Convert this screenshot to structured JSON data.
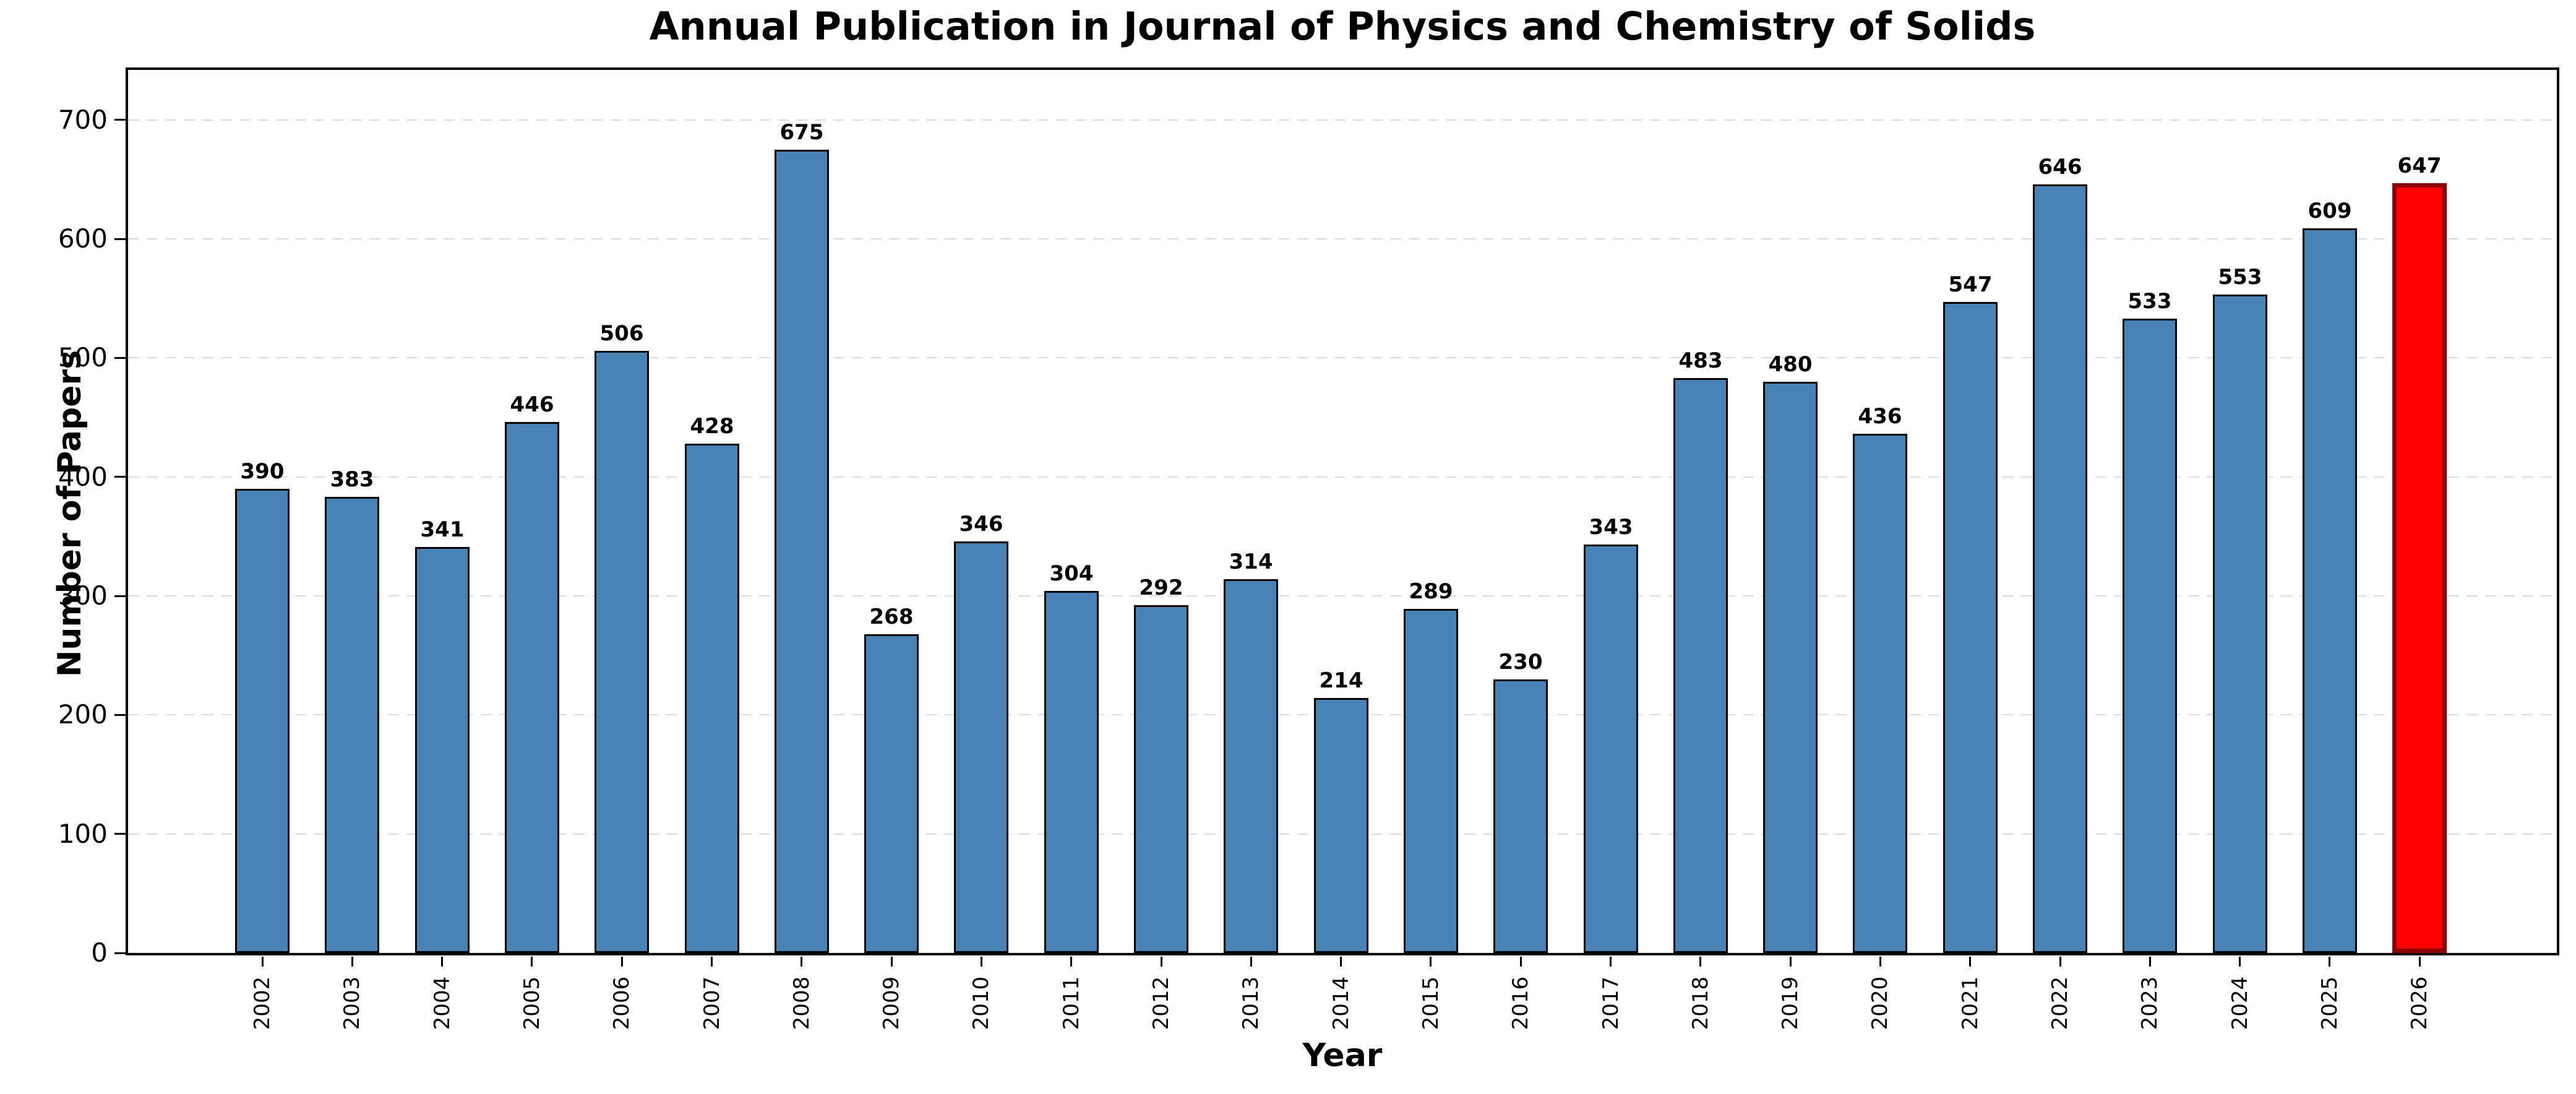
{
  "chart_data": {
    "type": "bar",
    "title": "Annual Publication in Journal of Physics and Chemistry of Solids",
    "xlabel": "Year",
    "ylabel": "Number of Papers",
    "categories": [
      "2002",
      "2003",
      "2004",
      "2005",
      "2006",
      "2007",
      "2008",
      "2009",
      "2010",
      "2011",
      "2012",
      "2013",
      "2014",
      "2015",
      "2016",
      "2017",
      "2018",
      "2019",
      "2020",
      "2021",
      "2022",
      "2023",
      "2024",
      "2025",
      "2026"
    ],
    "values": [
      390,
      383,
      341,
      446,
      506,
      428,
      675,
      268,
      346,
      304,
      292,
      314,
      214,
      289,
      230,
      343,
      483,
      480,
      436,
      547,
      646,
      533,
      553,
      609,
      647
    ],
    "ylim": [
      0,
      742
    ],
    "yticks": [
      0,
      100,
      200,
      300,
      400,
      500,
      600,
      700
    ],
    "grid": {
      "axis": "y",
      "style": "dashed",
      "color": "#dcdcdc"
    },
    "legend": null,
    "styles": {
      "bar_color": "#4682B4",
      "bar_edge_color": "#000000",
      "highlight_index": 24,
      "highlight_color": "#ff0000",
      "highlight_edge_color": "#8b0000",
      "spine_color": "#000000",
      "background": "#ffffff"
    }
  }
}
